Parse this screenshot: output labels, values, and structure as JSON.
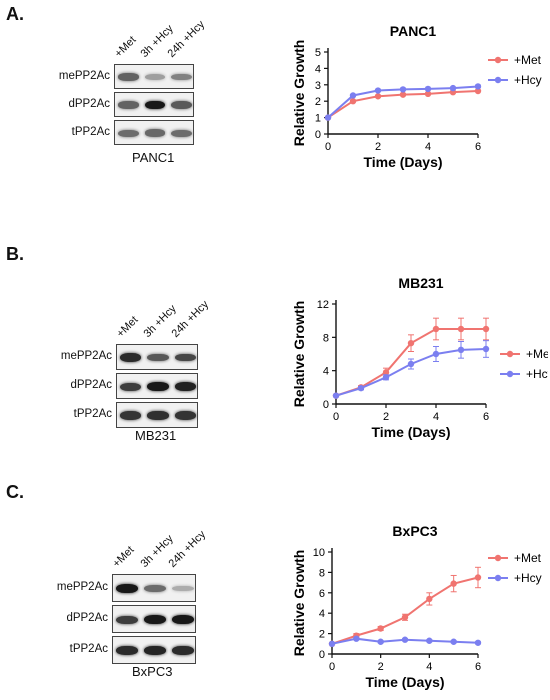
{
  "panels": [
    {
      "letter": "A.",
      "cell_line": "PANC1",
      "lanes": [
        "+Met",
        "3h +Hcy",
        "24h +Hcy"
      ],
      "blot_rows": [
        {
          "label": "mePP2Ac",
          "intensity": [
            0.55,
            0.22,
            0.38
          ]
        },
        {
          "label": "dPP2Ac",
          "intensity": [
            0.55,
            0.95,
            0.6
          ]
        },
        {
          "label": "tPP2Ac",
          "intensity": [
            0.5,
            0.52,
            0.5
          ]
        }
      ]
    },
    {
      "letter": "B.",
      "cell_line": "MB231",
      "lanes": [
        "+Met",
        "3h +Hcy",
        "24h +Hcy"
      ],
      "blot_rows": [
        {
          "label": "mePP2Ac",
          "intensity": [
            0.85,
            0.6,
            0.7
          ]
        },
        {
          "label": "dPP2Ac",
          "intensity": [
            0.75,
            0.95,
            0.9
          ]
        },
        {
          "label": "tPP2Ac",
          "intensity": [
            0.8,
            0.82,
            0.8
          ]
        }
      ]
    },
    {
      "letter": "C.",
      "cell_line": "BxPC3",
      "lanes": [
        "+Met",
        "3h +Hcy",
        "24h +Hcy"
      ],
      "blot_rows": [
        {
          "label": "mePP2Ac",
          "intensity": [
            0.95,
            0.5,
            0.15
          ]
        },
        {
          "label": "dPP2Ac",
          "intensity": [
            0.75,
            0.95,
            0.95
          ]
        },
        {
          "label": "tPP2Ac",
          "intensity": [
            0.85,
            0.88,
            0.85
          ]
        }
      ]
    }
  ],
  "colors": {
    "met": "#f07470",
    "hcy": "#7b7ff0"
  },
  "chart_data": [
    {
      "type": "line",
      "title": "PANC1",
      "xlabel": "Time (Days)",
      "ylabel": "Relative Growth",
      "xlim": [
        0,
        6
      ],
      "ylim": [
        0,
        5
      ],
      "xticks": [
        0,
        2,
        4,
        6
      ],
      "yticks": [
        0,
        1,
        2,
        3,
        4,
        5
      ],
      "legend_position": "top-right",
      "x": [
        0,
        1,
        2,
        3,
        4,
        5,
        6
      ],
      "series": [
        {
          "name": "+Met",
          "values": [
            1,
            2.0,
            2.3,
            2.4,
            2.45,
            2.55,
            2.62
          ],
          "error": [
            0,
            0.05,
            0.05,
            0.05,
            0.05,
            0.05,
            0.05
          ]
        },
        {
          "name": "+Hcy",
          "values": [
            1,
            2.35,
            2.65,
            2.72,
            2.75,
            2.8,
            2.9
          ],
          "error": [
            0,
            0.05,
            0.05,
            0.05,
            0.05,
            0.05,
            0.05
          ]
        }
      ]
    },
    {
      "type": "line",
      "title": "MB231",
      "xlabel": "Time (Days)",
      "ylabel": "Relative Growth",
      "xlim": [
        0,
        6
      ],
      "ylim": [
        0,
        12
      ],
      "xticks": [
        0,
        2,
        4,
        6
      ],
      "yticks": [
        0,
        4,
        8,
        12
      ],
      "legend_position": "right",
      "x": [
        0,
        1,
        2,
        3,
        4,
        5,
        6
      ],
      "series": [
        {
          "name": "+Met",
          "values": [
            1,
            2.0,
            3.8,
            7.3,
            9.0,
            9.0,
            9.0
          ],
          "error": [
            0,
            0.2,
            0.5,
            1.0,
            1.3,
            1.3,
            1.3
          ]
        },
        {
          "name": "+Hcy",
          "values": [
            1,
            1.9,
            3.2,
            4.8,
            6.0,
            6.5,
            6.6
          ],
          "error": [
            0,
            0.2,
            0.3,
            0.6,
            0.9,
            1.0,
            1.0
          ]
        }
      ]
    },
    {
      "type": "line",
      "title": "BxPC3",
      "xlabel": "Time (Days)",
      "ylabel": "Relative Growth",
      "xlim": [
        0,
        6
      ],
      "ylim": [
        0,
        10
      ],
      "xticks": [
        0,
        2,
        4,
        6
      ],
      "yticks": [
        0,
        2,
        4,
        6,
        8,
        10
      ],
      "legend_position": "top-right",
      "x": [
        0,
        1,
        2,
        3,
        4,
        5,
        6
      ],
      "series": [
        {
          "name": "+Met",
          "values": [
            1,
            1.8,
            2.5,
            3.6,
            5.4,
            6.9,
            7.5
          ],
          "error": [
            0,
            0.2,
            0.2,
            0.3,
            0.6,
            0.8,
            1.0
          ]
        },
        {
          "name": "+Hcy",
          "values": [
            1,
            1.5,
            1.2,
            1.4,
            1.3,
            1.2,
            1.1
          ],
          "error": [
            0,
            0.1,
            0.1,
            0.1,
            0.1,
            0.1,
            0.1
          ]
        }
      ]
    }
  ]
}
